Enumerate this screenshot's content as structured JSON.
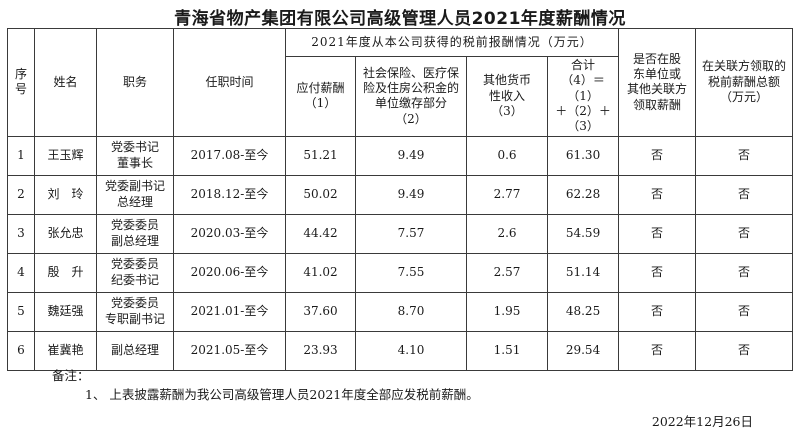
{
  "title": "青海省物产集团有限公司高级管理人员2021年度薪酬情况",
  "table": {
    "headers": {
      "index": "序\n号",
      "name": "姓名",
      "position": "职务",
      "tenure": "任职时间",
      "group": "2021年度从本公司获得的税前报酬情况（万元）",
      "payable": "应付薪酬\n（1）",
      "insurance": "社会保险、医疗保\n险及住房公积金的\n单位缴存部分\n（2）",
      "other_income": "其他货币\n性收入\n（3）",
      "total": "合计\n（4）＝（1）\n＋（2）＋\n（3）",
      "shareholder": "是否在股\n东单位或\n其他关联方\n领取薪酬",
      "related_party": "在关联方领取的\n税前薪酬总额\n（万元）"
    },
    "rows": [
      [
        "1",
        "王玉辉",
        "党委书记\n董事长",
        "2017.08-至今",
        "51.21",
        "9.49",
        "0.6",
        "61.30",
        "否",
        "否"
      ],
      [
        "2",
        "刘　玲",
        "党委副书记\n总经理",
        "2018.12-至今",
        "50.02",
        "9.49",
        "2.77",
        "62.28",
        "否",
        "否"
      ],
      [
        "3",
        "张允忠",
        "党委委员\n副总经理",
        "2020.03-至今",
        "44.42",
        "7.57",
        "2.6",
        "54.59",
        "否",
        "否"
      ],
      [
        "4",
        "殷　升",
        "党委委员\n纪委书记",
        "2020.06-至今",
        "41.02",
        "7.55",
        "2.57",
        "51.14",
        "否",
        "否"
      ],
      [
        "5",
        "魏廷强",
        "党委委员\n专职副书记",
        "2021.01-至今",
        "37.60",
        "8.70",
        "1.95",
        "48.25",
        "否",
        "否"
      ],
      [
        "6",
        "崔冀艳",
        "副总经理",
        "2021.05-至今",
        "23.93",
        "4.10",
        "1.51",
        "29.54",
        "否",
        "否"
      ]
    ]
  },
  "notes": {
    "label": "备注：",
    "item1": "1、 上表披露薪酬为我公司高级管理人员2021年度全部应发税前薪酬。"
  },
  "date": "2022年12月26日"
}
